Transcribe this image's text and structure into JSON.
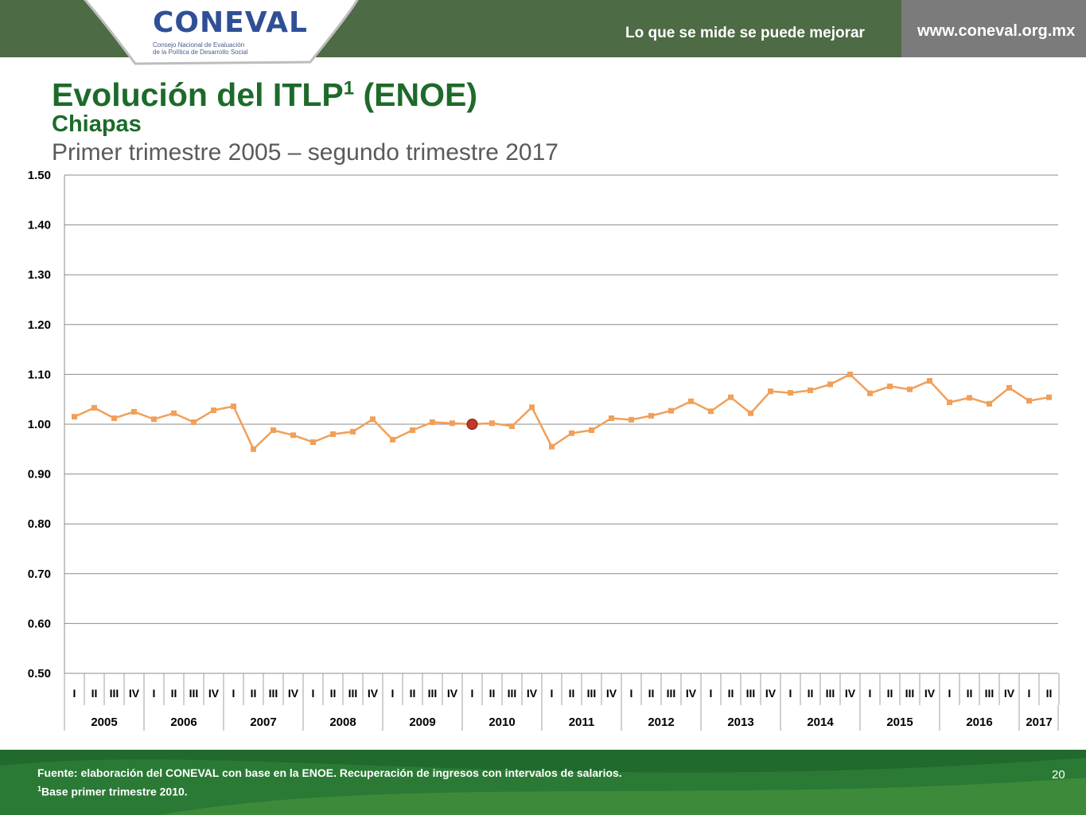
{
  "header": {
    "logo_text": "CONEVAL",
    "logo_sub_line1": "Consejo Nacional de Evaluación",
    "logo_sub_line2": "de la Política de Desarrollo Social",
    "tagline": "Lo que se mide se puede mejorar",
    "website": "www.coneval.org.mx"
  },
  "slide": {
    "title": "Evolución del ITLP",
    "title_sup": "1",
    "title_suffix": " (ENOE)",
    "subtitle": "Chiapas",
    "period": "Primer trimestre 2005 – segundo trimestre 2017"
  },
  "chart_data": {
    "type": "line",
    "ylim": [
      0.5,
      1.5
    ],
    "yticks": [
      "0.50",
      "0.60",
      "0.70",
      "0.80",
      "0.90",
      "1.00",
      "1.10",
      "1.20",
      "1.30",
      "1.40",
      "1.50"
    ],
    "years": [
      "2005",
      "2006",
      "2007",
      "2008",
      "2009",
      "2010",
      "2011",
      "2012",
      "2013",
      "2014",
      "2015",
      "2016",
      "2017"
    ],
    "quarters": [
      "I",
      "II",
      "III",
      "IV",
      "I",
      "II",
      "III",
      "IV",
      "I",
      "II",
      "III",
      "IV",
      "I",
      "II",
      "III",
      "IV",
      "I",
      "II",
      "III",
      "IV",
      "I",
      "II",
      "III",
      "IV",
      "I",
      "II",
      "III",
      "IV",
      "I",
      "II",
      "III",
      "IV",
      "I",
      "II",
      "III",
      "IV",
      "I",
      "II",
      "III",
      "IV",
      "I",
      "II",
      "III",
      "IV",
      "I",
      "II",
      "III",
      "IV",
      "I",
      "II"
    ],
    "values": [
      1.015,
      1.033,
      1.012,
      1.025,
      1.01,
      1.022,
      1.004,
      1.028,
      1.036,
      0.95,
      0.988,
      0.978,
      0.964,
      0.98,
      0.985,
      1.01,
      0.969,
      0.988,
      1.004,
      1.002,
      1.0,
      1.002,
      0.996,
      1.034,
      0.955,
      0.982,
      0.988,
      1.012,
      1.009,
      1.017,
      1.027,
      1.046,
      1.026,
      1.054,
      1.022,
      1.066,
      1.063,
      1.068,
      1.08,
      1.1,
      1.062,
      1.076,
      1.07,
      1.087,
      1.044,
      1.053,
      1.041,
      1.073,
      1.047,
      1.054
    ],
    "base_index": 20,
    "line_color": "#f0a05a",
    "base_marker_color": "#c0392b",
    "grid": true
  },
  "footer": {
    "source": "Fuente: elaboración del CONEVAL con base en la ENOE. Recuperación de ingresos con intervalos de salarios.",
    "note_sup": "1",
    "note": "Base primer trimestre 2010.",
    "page_number": "20"
  }
}
